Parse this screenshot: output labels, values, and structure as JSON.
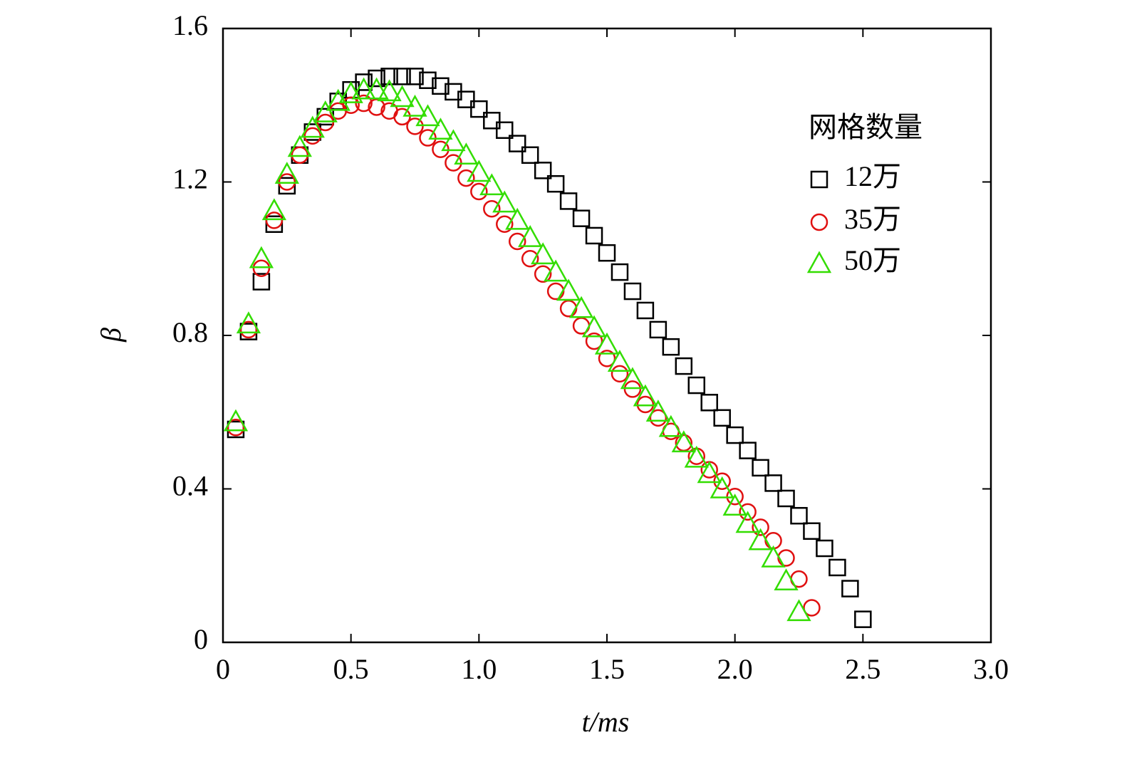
{
  "chart_data": {
    "type": "scatter",
    "xlabel": "t/ms",
    "ylabel": "β",
    "legend_title": "网格数量",
    "legend": "upper right",
    "xlim": [
      0,
      3
    ],
    "xticks": [
      0,
      0.5,
      {
        "value": 1,
        "label": "1.0"
      },
      1.5,
      {
        "value": 2,
        "label": "2.0"
      },
      2.5,
      {
        "value": 3,
        "label": "3.0"
      }
    ],
    "ylim": [
      0,
      1.6
    ],
    "yticks": [
      0,
      0.4,
      0.8,
      1.2,
      1.6
    ],
    "series": [
      {
        "name": "12万",
        "color": "#000000",
        "marker": "square",
        "x": [
          0.05,
          0.1,
          0.15,
          0.2,
          0.25,
          0.3,
          0.35,
          0.4,
          0.45,
          0.5,
          0.55,
          0.6,
          0.65,
          0.7,
          0.75,
          0.8,
          0.85,
          0.9,
          0.95,
          1.0,
          1.05,
          1.1,
          1.15,
          1.2,
          1.25,
          1.3,
          1.35,
          1.4,
          1.45,
          1.5,
          1.55,
          1.6,
          1.65,
          1.7,
          1.75,
          1.8,
          1.85,
          1.9,
          1.95,
          2.0,
          2.05,
          2.1,
          2.15,
          2.2,
          2.25,
          2.3,
          2.35,
          2.4,
          2.45,
          2.5
        ],
        "values": [
          0.555,
          0.81,
          0.94,
          1.09,
          1.19,
          1.27,
          1.33,
          1.37,
          1.41,
          1.44,
          1.46,
          1.47,
          1.475,
          1.475,
          1.475,
          1.465,
          1.45,
          1.435,
          1.415,
          1.39,
          1.36,
          1.335,
          1.3,
          1.27,
          1.23,
          1.195,
          1.15,
          1.105,
          1.06,
          1.015,
          0.965,
          0.915,
          0.865,
          0.815,
          0.77,
          0.72,
          0.67,
          0.625,
          0.585,
          0.54,
          0.5,
          0.455,
          0.415,
          0.375,
          0.33,
          0.29,
          0.245,
          0.195,
          0.14,
          0.06
        ]
      },
      {
        "name": "35万",
        "color": "#e01010",
        "marker": "circle",
        "x": [
          0.05,
          0.1,
          0.15,
          0.2,
          0.25,
          0.3,
          0.35,
          0.4,
          0.45,
          0.5,
          0.55,
          0.6,
          0.65,
          0.7,
          0.75,
          0.8,
          0.85,
          0.9,
          0.95,
          1.0,
          1.05,
          1.1,
          1.15,
          1.2,
          1.25,
          1.3,
          1.35,
          1.4,
          1.45,
          1.5,
          1.55,
          1.6,
          1.65,
          1.7,
          1.75,
          1.8,
          1.85,
          1.9,
          1.95,
          2.0,
          2.05,
          2.1,
          2.15,
          2.2,
          2.25,
          2.3
        ],
        "values": [
          0.56,
          0.815,
          0.975,
          1.1,
          1.2,
          1.27,
          1.32,
          1.355,
          1.385,
          1.4,
          1.405,
          1.395,
          1.385,
          1.37,
          1.345,
          1.315,
          1.285,
          1.25,
          1.21,
          1.175,
          1.13,
          1.09,
          1.045,
          1.0,
          0.96,
          0.915,
          0.87,
          0.825,
          0.785,
          0.74,
          0.7,
          0.66,
          0.62,
          0.585,
          0.55,
          0.52,
          0.485,
          0.45,
          0.42,
          0.38,
          0.34,
          0.3,
          0.265,
          0.22,
          0.165,
          0.09
        ]
      },
      {
        "name": "50万",
        "color": "#33dd00",
        "marker": "triangle",
        "x": [
          0.05,
          0.1,
          0.15,
          0.2,
          0.25,
          0.3,
          0.35,
          0.4,
          0.45,
          0.5,
          0.55,
          0.6,
          0.65,
          0.7,
          0.75,
          0.8,
          0.85,
          0.9,
          0.95,
          1.0,
          1.05,
          1.1,
          1.15,
          1.2,
          1.25,
          1.3,
          1.35,
          1.4,
          1.45,
          1.5,
          1.55,
          1.6,
          1.65,
          1.7,
          1.75,
          1.8,
          1.85,
          1.9,
          1.95,
          2.0,
          2.05,
          2.1,
          2.15,
          2.2,
          2.25
        ],
        "values": [
          0.575,
          0.83,
          1.0,
          1.125,
          1.22,
          1.29,
          1.34,
          1.38,
          1.41,
          1.43,
          1.44,
          1.44,
          1.435,
          1.42,
          1.395,
          1.37,
          1.335,
          1.305,
          1.27,
          1.225,
          1.19,
          1.145,
          1.1,
          1.055,
          1.01,
          0.965,
          0.915,
          0.87,
          0.82,
          0.775,
          0.73,
          0.685,
          0.64,
          0.6,
          0.56,
          0.52,
          0.48,
          0.44,
          0.4,
          0.355,
          0.31,
          0.265,
          0.22,
          0.16,
          0.08
        ]
      }
    ]
  }
}
